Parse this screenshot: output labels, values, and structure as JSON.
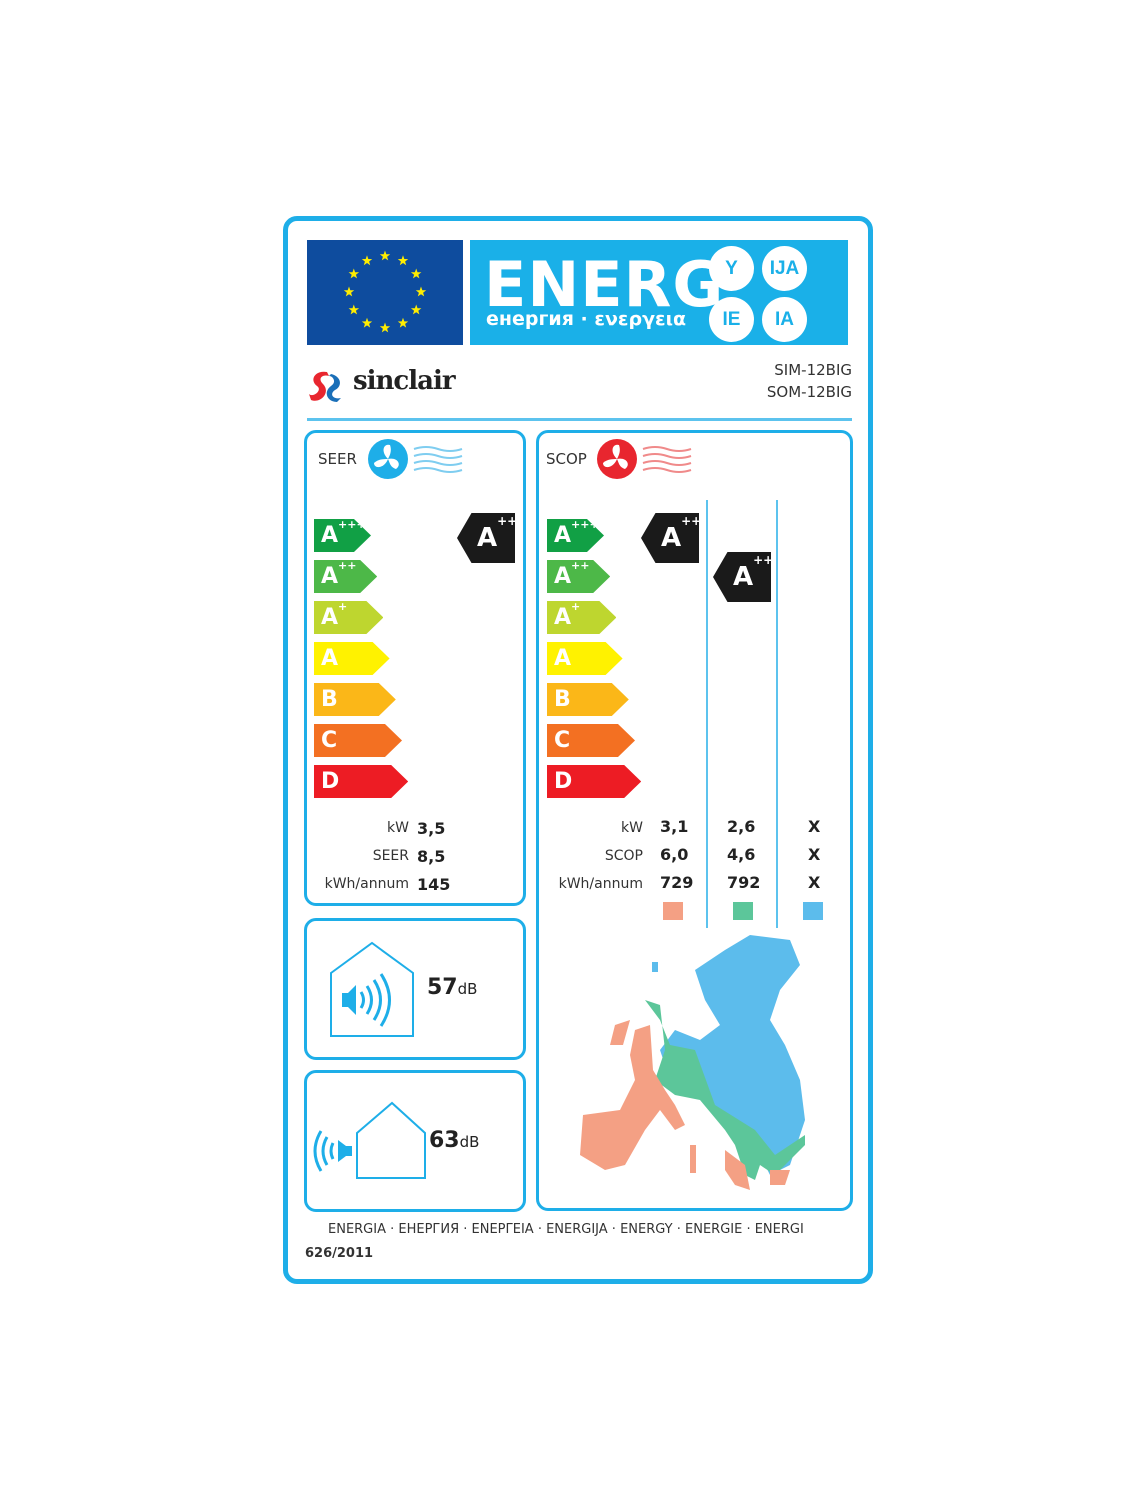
{
  "header": {
    "energy_word": "ENERG",
    "energy_subtitle": "енергия · ενεργεια",
    "suffixes": [
      "Y",
      "IJA",
      "IE",
      "IA"
    ]
  },
  "brand": {
    "name": "sinclair",
    "models": [
      "SIM-12BIG",
      "SOM-12BIG"
    ]
  },
  "classes": [
    {
      "letter": "A",
      "plus": "+++",
      "color": "#11a045"
    },
    {
      "letter": "A",
      "plus": "++",
      "color": "#4db848"
    },
    {
      "letter": "A",
      "plus": "+",
      "color": "#bed62f"
    },
    {
      "letter": "A",
      "plus": "",
      "color": "#fff200"
    },
    {
      "letter": "B",
      "plus": "",
      "color": "#fbb718"
    },
    {
      "letter": "C",
      "plus": "",
      "color": "#f37022"
    },
    {
      "letter": "D",
      "plus": "",
      "color": "#ed1c24"
    }
  ],
  "seer": {
    "title": "SEER",
    "rating": {
      "letter": "A",
      "plus": "+++"
    },
    "rows": [
      {
        "label": "kW",
        "value": "3,5"
      },
      {
        "label": "SEER",
        "value": "8,5"
      },
      {
        "label": "kWh/annum",
        "value": "145"
      }
    ]
  },
  "scop": {
    "title": "SCOP",
    "row_labels": [
      "kW",
      "SCOP",
      "kWh/annum"
    ],
    "columns": [
      {
        "rating": {
          "letter": "A",
          "plus": "+++"
        },
        "values": [
          "3,1",
          "6,0",
          "729"
        ],
        "color": "#f4a084"
      },
      {
        "rating": {
          "letter": "A",
          "plus": "++"
        },
        "values": [
          "2,6",
          "4,6",
          "792"
        ],
        "color": "#5cc69a"
      },
      {
        "rating": null,
        "values": [
          "X",
          "X",
          "X"
        ],
        "color": "#5cbcec"
      }
    ]
  },
  "noise": {
    "indoor": {
      "value": "57",
      "unit": "dB"
    },
    "outdoor": {
      "value": "63",
      "unit": "dB"
    }
  },
  "footer": {
    "languages": "ENERGIA · ЕНЕРГИЯ · ΕΝΕΡΓΕΙΑ · ENERGIJA · ENERGY · ENERGIE · ENERGI",
    "regulation": "626/2011"
  },
  "colors": {
    "frame": "#1eaee8",
    "flag": "#0e4c9e",
    "banner": "#1ab0e8",
    "star": "#ffed00"
  }
}
